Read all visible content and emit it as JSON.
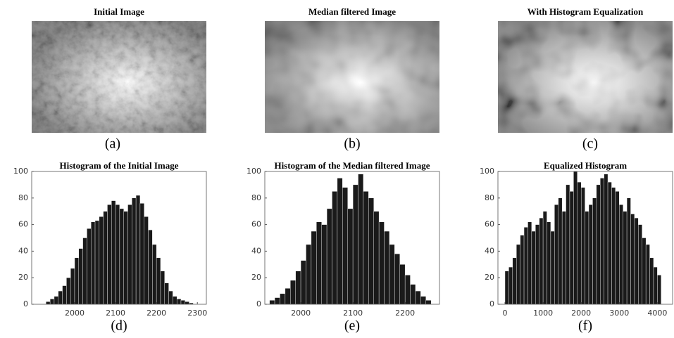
{
  "images": [
    {
      "title": "Initial Image",
      "caption": "(a)"
    },
    {
      "title": "Median filtered Image",
      "caption": "(b)"
    },
    {
      "title": "With Histogram Equalization",
      "caption": "(c)"
    }
  ],
  "chart_data": [
    {
      "type": "histogram",
      "title": "Histogram of the Initial Image",
      "caption": "(d)",
      "color": "#1a1a1a",
      "bins": [
        1930,
        1940,
        1950,
        1960,
        1970,
        1980,
        1990,
        2000,
        2010,
        2020,
        2030,
        2040,
        2050,
        2060,
        2070,
        2080,
        2090,
        2100,
        2110,
        2120,
        2130,
        2140,
        2150,
        2160,
        2170,
        2180,
        2190,
        2200,
        2210,
        2220,
        2230,
        2240,
        2250,
        2260,
        2270,
        2280,
        2290
      ],
      "values": [
        2,
        4,
        6,
        10,
        14,
        20,
        27,
        35,
        42,
        50,
        57,
        62,
        63,
        66,
        70,
        75,
        78,
        75,
        72,
        70,
        75,
        80,
        82,
        76,
        66,
        56,
        45,
        35,
        25,
        16,
        10,
        6,
        4,
        3,
        2,
        1
      ],
      "xlim": [
        1895,
        2322
      ],
      "xticks": [
        2000,
        2100,
        2200,
        2300
      ],
      "ylim": [
        0,
        100
      ],
      "yticks": [
        0,
        20,
        40,
        60,
        80,
        100
      ]
    },
    {
      "type": "histogram",
      "title": "Histogram of the Median filtered Image",
      "caption": "(e)",
      "color": "#1a1a1a",
      "bins": [
        1940,
        1950,
        1960,
        1970,
        1980,
        1990,
        2000,
        2010,
        2020,
        2030,
        2040,
        2050,
        2060,
        2070,
        2080,
        2090,
        2100,
        2110,
        2120,
        2130,
        2140,
        2150,
        2160,
        2170,
        2180,
        2190,
        2200,
        2210,
        2220,
        2230,
        2240,
        2250
      ],
      "values": [
        3,
        5,
        8,
        12,
        18,
        25,
        33,
        45,
        55,
        62,
        60,
        72,
        85,
        95,
        88,
        72,
        90,
        98,
        85,
        80,
        70,
        62,
        55,
        45,
        38,
        30,
        22,
        15,
        10,
        6,
        3
      ],
      "xlim": [
        1931,
        2266
      ],
      "xticks": [
        2000,
        2100,
        2200
      ],
      "ylim": [
        0,
        100
      ],
      "yticks": [
        0,
        20,
        40,
        60,
        80,
        100
      ]
    },
    {
      "type": "histogram",
      "title": "Equalized Histogram",
      "caption": "(f)",
      "color": "#1a1a1a",
      "bins": [
        0,
        100,
        200,
        300,
        400,
        500,
        600,
        700,
        800,
        900,
        1000,
        1100,
        1200,
        1300,
        1400,
        1500,
        1600,
        1700,
        1800,
        1900,
        2000,
        2100,
        2200,
        2300,
        2400,
        2500,
        2600,
        2700,
        2800,
        2900,
        3000,
        3100,
        3200,
        3300,
        3400,
        3500,
        3600,
        3700,
        3800,
        3900,
        4000,
        4100
      ],
      "values": [
        25,
        28,
        35,
        45,
        52,
        58,
        62,
        55,
        60,
        65,
        70,
        62,
        55,
        75,
        80,
        70,
        90,
        85,
        100,
        92,
        88,
        70,
        75,
        80,
        90,
        95,
        98,
        92,
        88,
        85,
        75,
        70,
        80,
        68,
        65,
        60,
        50,
        45,
        35,
        28,
        22
      ],
      "xlim": [
        -185,
        4400
      ],
      "xticks": [
        0,
        1000,
        2000,
        3000,
        4000
      ],
      "ylim": [
        0,
        100
      ],
      "yticks": [
        0,
        20,
        40,
        60,
        80,
        100
      ]
    }
  ]
}
